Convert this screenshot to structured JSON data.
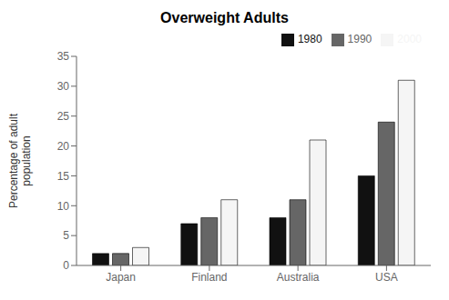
{
  "chart_data": {
    "type": "bar",
    "title": "Overweight Adults",
    "ylabel": "Percentage of adult\npopulation",
    "categories": [
      "Japan",
      "Finland",
      "Australia",
      "USA"
    ],
    "series": [
      {
        "name": "1980",
        "color": "#111111",
        "values": [
          2,
          7,
          8,
          15
        ]
      },
      {
        "name": "1990",
        "color": "#666666",
        "values": [
          2,
          8,
          11,
          24
        ]
      },
      {
        "name": "2000",
        "color": "#f5f5f5",
        "values": [
          3,
          11,
          21,
          31
        ]
      }
    ],
    "ylim": [
      0,
      35
    ],
    "yticks": [
      0,
      5,
      10,
      15,
      20,
      25,
      30,
      35
    ],
    "grid": false,
    "legend": "upper right"
  }
}
